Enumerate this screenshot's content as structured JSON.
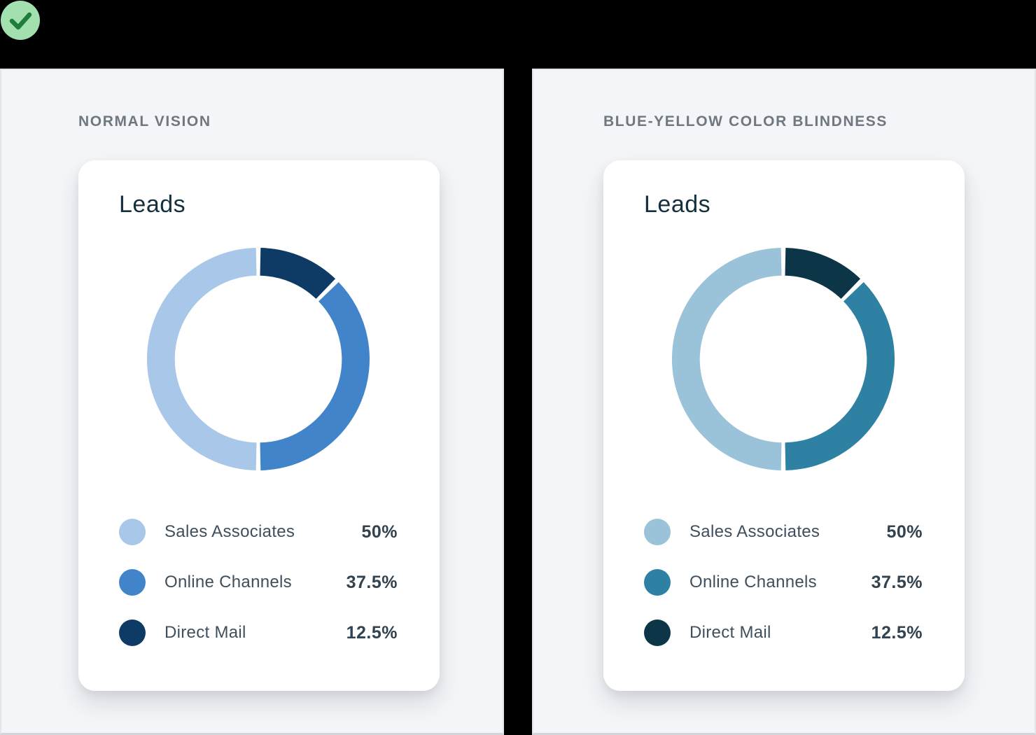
{
  "badge": {
    "icon": "check-circle-icon",
    "circle_color": "#A3E0B0",
    "check_color": "#1F7D3B"
  },
  "theme": {
    "page_background": "#000000",
    "panel_background": "#F4F5F8",
    "panel_label_color": "#6F7780",
    "card_background": "#FFFFFF",
    "card_title_color": "#14303E",
    "legend_label_color": "#3F4F5D",
    "legend_value_color": "#32424E"
  },
  "panels": [
    {
      "label": "NORMAL VISION",
      "card": {
        "title": "Leads"
      }
    },
    {
      "label": "BLUE-YELLOW COLOR BLINDNESS",
      "card": {
        "title": "Leads"
      }
    }
  ],
  "chart_data": [
    {
      "type": "pie",
      "variant": "donut",
      "title": "Leads",
      "panel_label": "NORMAL VISION",
      "categories": [
        "Sales Associates",
        "Online Channels",
        "Direct Mail"
      ],
      "values": [
        50,
        37.5,
        12.5
      ],
      "value_labels": [
        "50%",
        "37.5%",
        "12.5%"
      ],
      "colors": [
        "#A9C7E9",
        "#4284C9",
        "#0E3A66"
      ],
      "start_angle_deg": -90,
      "direction": "clockwise",
      "clockwise_order_from_top": [
        "Direct Mail",
        "Online Channels",
        "Sales Associates"
      ],
      "segment_gap_deg": 2.4,
      "legend_position": "bottom"
    },
    {
      "type": "pie",
      "variant": "donut",
      "title": "Leads",
      "panel_label": "BLUE-YELLOW COLOR BLINDNESS",
      "categories": [
        "Sales Associates",
        "Online Channels",
        "Direct Mail"
      ],
      "values": [
        50,
        37.5,
        12.5
      ],
      "value_labels": [
        "50%",
        "37.5%",
        "12.5%"
      ],
      "colors": [
        "#9AC2D9",
        "#2E81A3",
        "#0C3547"
      ],
      "start_angle_deg": -90,
      "direction": "clockwise",
      "clockwise_order_from_top": [
        "Direct Mail",
        "Online Channels",
        "Sales Associates"
      ],
      "segment_gap_deg": 2.4,
      "legend_position": "bottom"
    }
  ]
}
